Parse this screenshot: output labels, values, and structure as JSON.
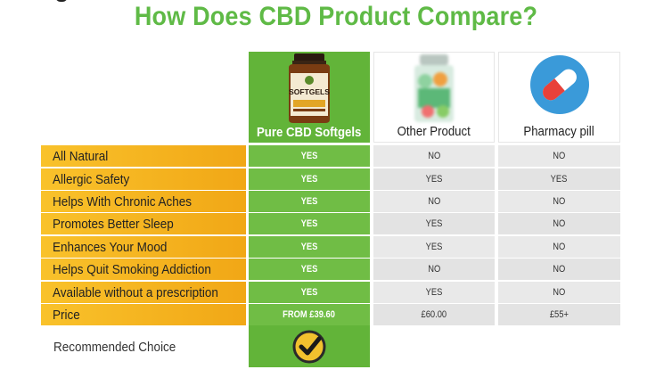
{
  "title": "How Does CBD Product Compare?",
  "columns": [
    {
      "label": "Pure CBD Softgels",
      "icon": "softgel-bottle-icon"
    },
    {
      "label": "Other Product",
      "icon": "gummy-jar-icon"
    },
    {
      "label": "Pharmacy pill",
      "icon": "capsule-pill-icon"
    }
  ],
  "bottle_label": "SOFTGELS",
  "rows": [
    {
      "feature": "All Natural",
      "values": [
        "YES",
        "NO",
        "NO"
      ]
    },
    {
      "feature": "Allergic Safety",
      "values": [
        "YES",
        "YES",
        "YES"
      ]
    },
    {
      "feature": "Helps With Chronic Aches",
      "values": [
        "YES",
        "NO",
        "NO"
      ]
    },
    {
      "feature": "Promotes Better Sleep",
      "values": [
        "YES",
        "YES",
        "NO"
      ]
    },
    {
      "feature": "Enhances Your Mood",
      "values": [
        "YES",
        "YES",
        "NO"
      ]
    },
    {
      "feature": "Helps Quit Smoking Addiction",
      "values": [
        "YES",
        "NO",
        "NO"
      ]
    },
    {
      "feature": "Available without a prescription",
      "values": [
        "YES",
        "YES",
        "NO"
      ]
    },
    {
      "feature": "Price",
      "values": [
        "FROM £39.60",
        "£60.00",
        "£55+"
      ]
    }
  ],
  "recommended": {
    "label": "Recommended Choice",
    "icon": "checkmark-badge-icon"
  },
  "colors": {
    "title_green": "#5fba46",
    "column_green": "#62b439",
    "feature_yellow": "#f9c22b",
    "feature_orange": "#f1a716",
    "neutral_gray": "#e9e9e9"
  }
}
